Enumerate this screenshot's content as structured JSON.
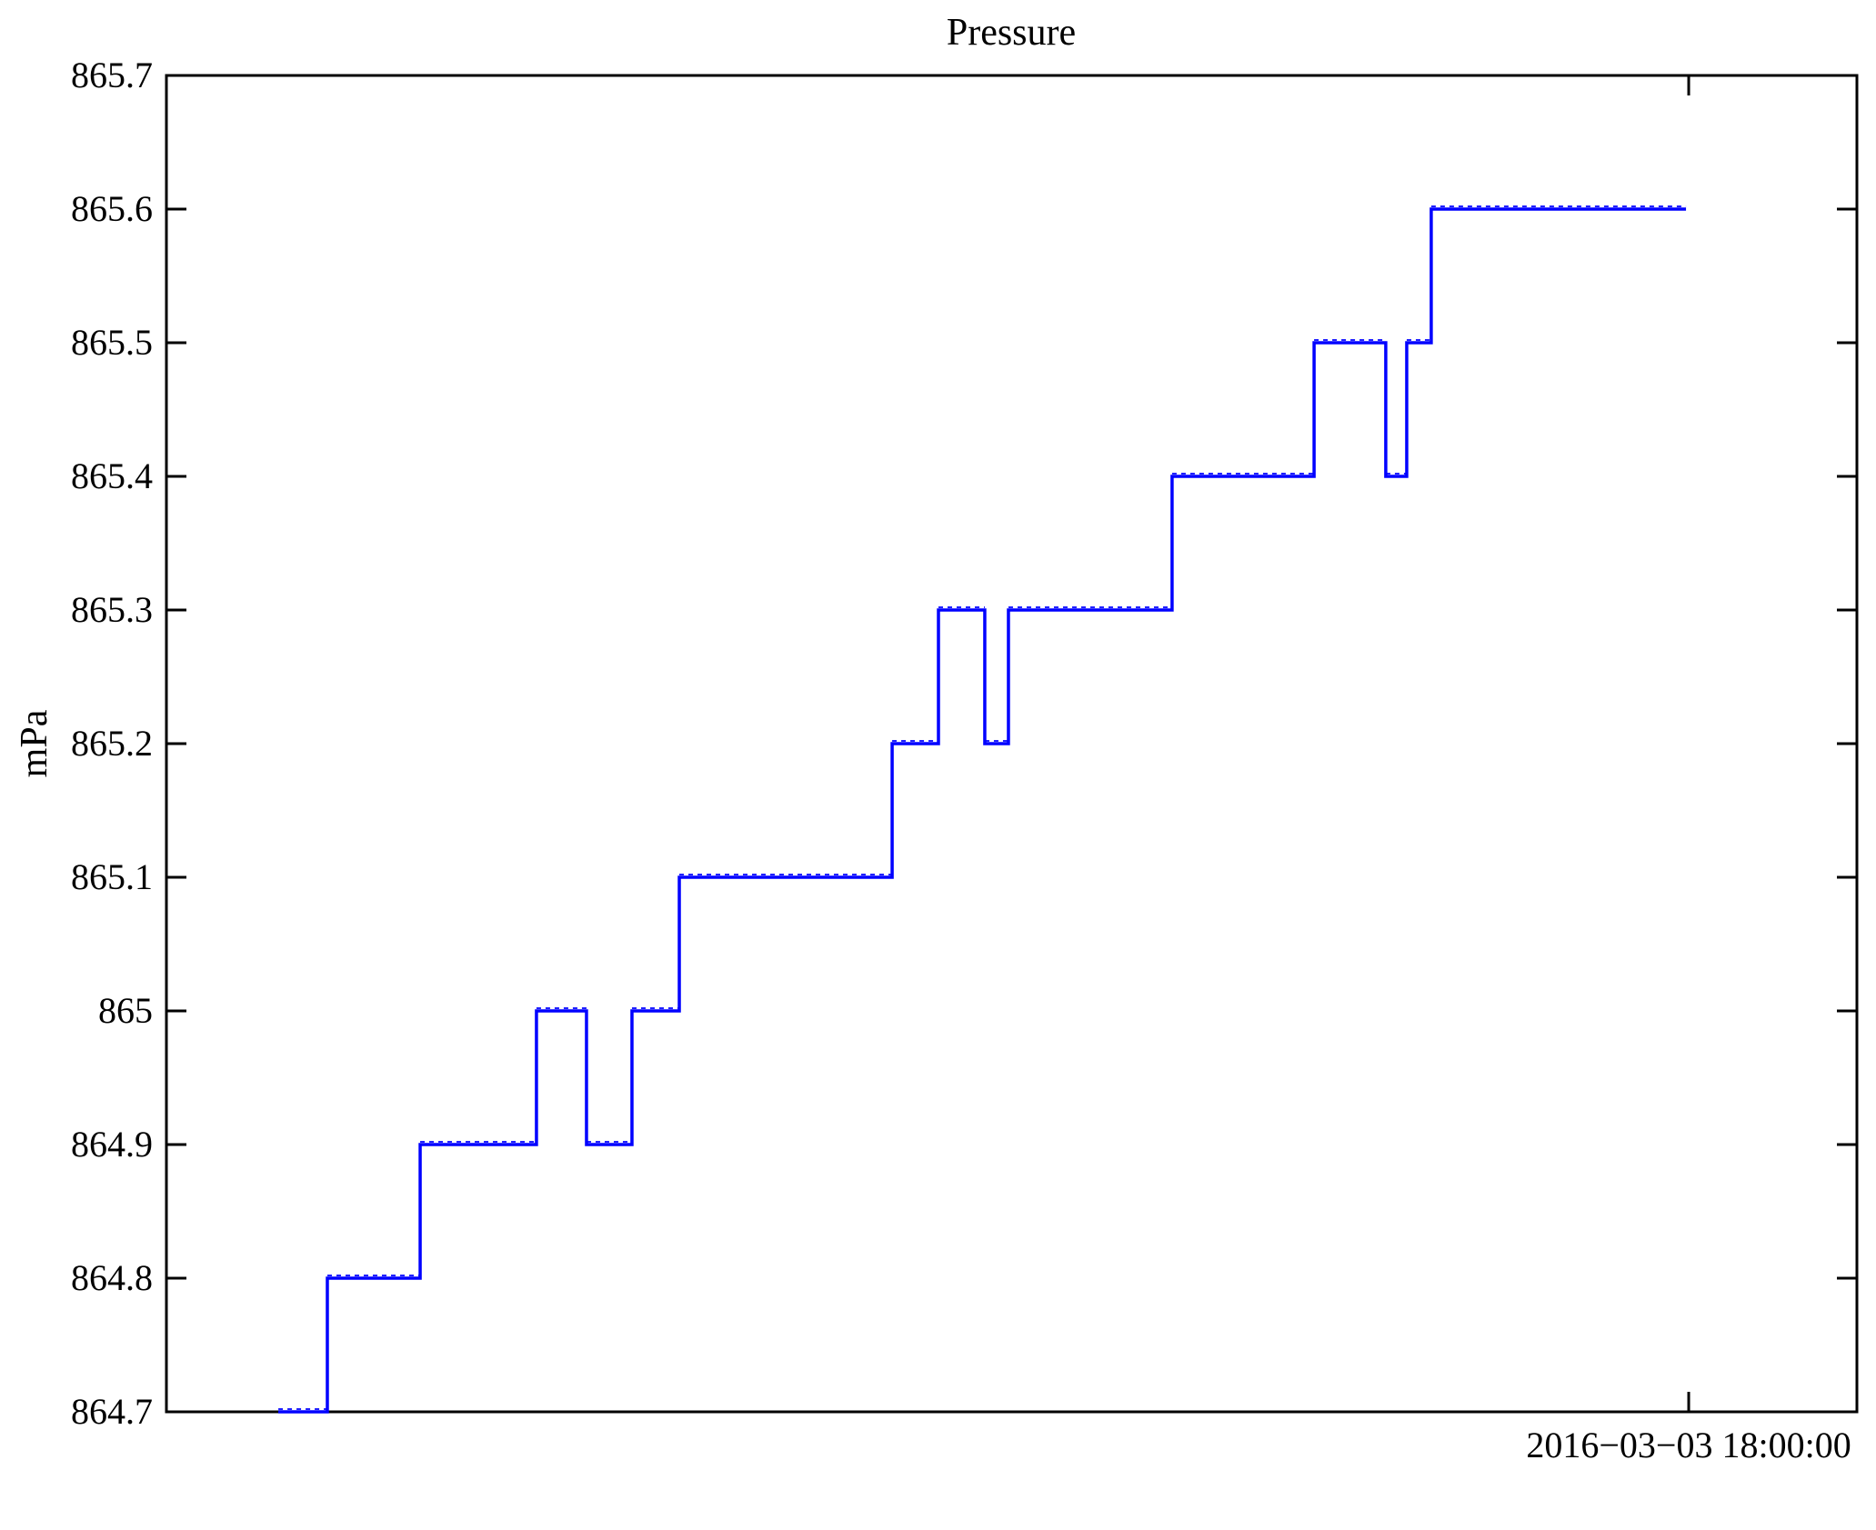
{
  "chart_data": {
    "type": "line",
    "subtype": "step",
    "title": "Pressure",
    "ylabel": "mPa",
    "xlabel": "",
    "ylim": [
      864.7,
      865.7
    ],
    "grid": false,
    "legend": null,
    "line_color": "#0000ff",
    "axis_color": "#000000",
    "background_color": "#ffffff",
    "yticks": [
      {
        "value": 864.7,
        "label": "864.7"
      },
      {
        "value": 864.8,
        "label": "864.8"
      },
      {
        "value": 864.9,
        "label": "864.9"
      },
      {
        "value": 865.0,
        "label": "865"
      },
      {
        "value": 865.1,
        "label": "865.1"
      },
      {
        "value": 865.2,
        "label": "865.2"
      },
      {
        "value": 865.3,
        "label": "865.3"
      },
      {
        "value": 865.4,
        "label": "865.4"
      },
      {
        "value": 865.5,
        "label": "865.5"
      },
      {
        "value": 865.6,
        "label": "865.6"
      },
      {
        "value": 865.7,
        "label": "865.7"
      }
    ],
    "xticks": [
      {
        "position": 0.9005,
        "label": "2016−03−03 18:00:00"
      }
    ],
    "step_points": [
      {
        "x": 0.0662,
        "y": 864.7
      },
      {
        "x": 0.0952,
        "y": 864.8
      },
      {
        "x": 0.1501,
        "y": 864.9
      },
      {
        "x": 0.2189,
        "y": 865.0
      },
      {
        "x": 0.2485,
        "y": 864.9
      },
      {
        "x": 0.2754,
        "y": 865.0
      },
      {
        "x": 0.3034,
        "y": 865.1
      },
      {
        "x": 0.4293,
        "y": 865.2
      },
      {
        "x": 0.4567,
        "y": 865.3
      },
      {
        "x": 0.4841,
        "y": 865.2
      },
      {
        "x": 0.4981,
        "y": 865.3
      },
      {
        "x": 0.5949,
        "y": 865.4
      },
      {
        "x": 0.6789,
        "y": 865.5
      },
      {
        "x": 0.7213,
        "y": 865.4
      },
      {
        "x": 0.7337,
        "y": 865.5
      },
      {
        "x": 0.7482,
        "y": 865.6
      },
      {
        "x": 0.8989,
        "y": 865.6
      }
    ]
  }
}
